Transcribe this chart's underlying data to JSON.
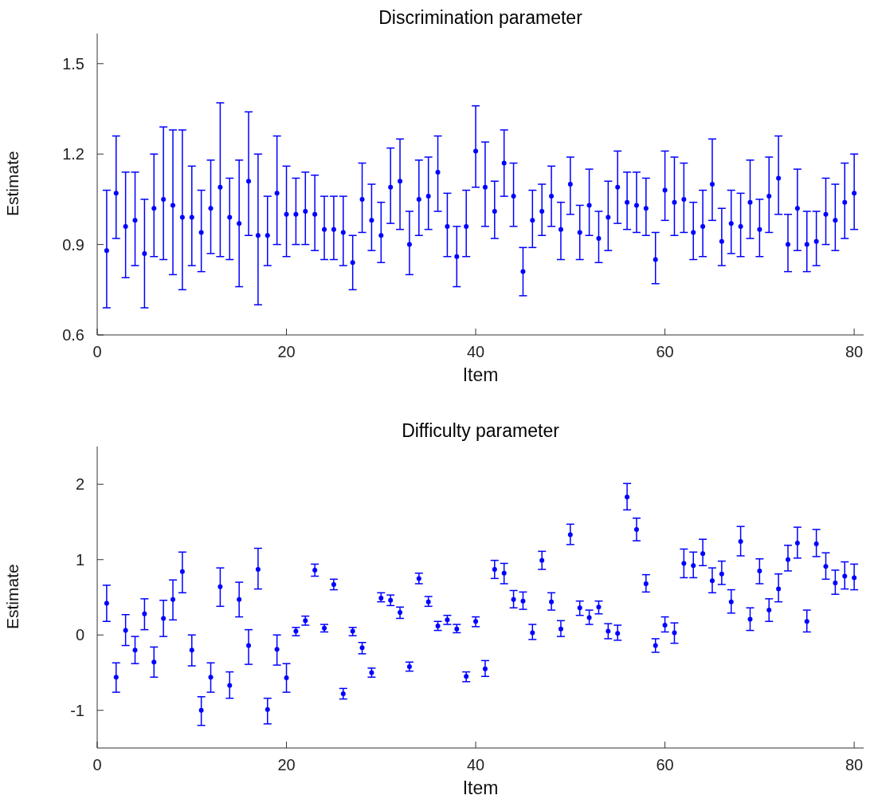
{
  "chart_data": [
    {
      "type": "scatter",
      "title": "Discrimination parameter",
      "xlabel": "Item",
      "ylabel": "Estimate",
      "xlim": [
        0,
        81
      ],
      "xticks": [
        0,
        20,
        40,
        60,
        80
      ],
      "ylim": [
        0.6,
        1.6
      ],
      "yticks": [
        0.6,
        0.9,
        1.2,
        1.5
      ],
      "grid": false,
      "legend": false,
      "marker": "circle",
      "x": [
        1,
        2,
        3,
        4,
        5,
        6,
        7,
        8,
        9,
        10,
        11,
        12,
        13,
        14,
        15,
        16,
        17,
        18,
        19,
        20,
        21,
        22,
        23,
        24,
        25,
        26,
        27,
        28,
        29,
        30,
        31,
        32,
        33,
        34,
        35,
        36,
        37,
        38,
        39,
        40,
        41,
        42,
        43,
        44,
        45,
        46,
        47,
        48,
        49,
        50,
        51,
        52,
        53,
        54,
        55,
        56,
        57,
        58,
        59,
        60,
        61,
        62,
        63,
        64,
        65,
        66,
        67,
        68,
        69,
        70,
        71,
        72,
        73,
        74,
        75,
        76,
        77,
        78,
        79,
        80
      ],
      "series": [
        {
          "color": "#0000ff",
          "values": [
            0.88,
            1.07,
            0.96,
            0.98,
            0.87,
            1.02,
            1.05,
            1.03,
            0.99,
            0.99,
            0.94,
            1.02,
            1.09,
            0.99,
            0.97,
            1.11,
            0.93,
            0.93,
            1.07,
            1.0,
            1.0,
            1.01,
            1.0,
            0.95,
            0.95,
            0.94,
            0.84,
            1.05,
            0.98,
            0.93,
            1.09,
            1.11,
            0.9,
            1.05,
            1.06,
            1.14,
            0.96,
            0.86,
            0.96,
            1.21,
            1.09,
            1.01,
            1.17,
            1.06,
            0.81,
            0.98,
            1.01,
            1.06,
            0.95,
            1.1,
            0.94,
            1.03,
            0.92,
            0.99,
            1.09,
            1.04,
            1.03,
            1.02,
            0.85,
            1.08,
            1.04,
            1.05,
            0.94,
            0.96,
            1.1,
            0.91,
            0.97,
            0.96,
            1.04,
            0.95,
            1.06,
            1.12,
            0.9,
            1.02,
            0.9,
            0.91,
            1.0,
            0.98,
            1.04,
            1.07
          ],
          "errors": [
            [
              0.69,
              1.08
            ],
            [
              0.92,
              1.26
            ],
            [
              0.79,
              1.14
            ],
            [
              0.83,
              1.14
            ],
            [
              0.69,
              1.05
            ],
            [
              0.86,
              1.2
            ],
            [
              0.85,
              1.29
            ],
            [
              0.8,
              1.28
            ],
            [
              0.75,
              1.28
            ],
            [
              0.83,
              1.16
            ],
            [
              0.81,
              1.08
            ],
            [
              0.87,
              1.18
            ],
            [
              0.86,
              1.37
            ],
            [
              0.85,
              1.12
            ],
            [
              0.76,
              1.18
            ],
            [
              0.93,
              1.34
            ],
            [
              0.7,
              1.2
            ],
            [
              0.83,
              1.06
            ],
            [
              0.9,
              1.26
            ],
            [
              0.86,
              1.16
            ],
            [
              0.9,
              1.12
            ],
            [
              0.9,
              1.14
            ],
            [
              0.88,
              1.13
            ],
            [
              0.85,
              1.06
            ],
            [
              0.85,
              1.06
            ],
            [
              0.83,
              1.06
            ],
            [
              0.75,
              0.93
            ],
            [
              0.94,
              1.17
            ],
            [
              0.88,
              1.1
            ],
            [
              0.84,
              1.04
            ],
            [
              0.97,
              1.22
            ],
            [
              0.95,
              1.25
            ],
            [
              0.8,
              1.01
            ],
            [
              0.93,
              1.18
            ],
            [
              0.95,
              1.19
            ],
            [
              1.01,
              1.26
            ],
            [
              0.86,
              1.07
            ],
            [
              0.76,
              0.96
            ],
            [
              0.86,
              1.08
            ],
            [
              1.09,
              1.36
            ],
            [
              0.96,
              1.24
            ],
            [
              0.92,
              1.11
            ],
            [
              1.06,
              1.28
            ],
            [
              0.96,
              1.17
            ],
            [
              0.73,
              0.89
            ],
            [
              0.89,
              1.08
            ],
            [
              0.93,
              1.1
            ],
            [
              0.96,
              1.16
            ],
            [
              0.85,
              1.04
            ],
            [
              1.0,
              1.19
            ],
            [
              0.85,
              1.03
            ],
            [
              0.93,
              1.15
            ],
            [
              0.84,
              1.01
            ],
            [
              0.88,
              1.11
            ],
            [
              0.97,
              1.21
            ],
            [
              0.95,
              1.14
            ],
            [
              0.94,
              1.14
            ],
            [
              0.93,
              1.12
            ],
            [
              0.77,
              0.94
            ],
            [
              0.98,
              1.21
            ],
            [
              0.93,
              1.19
            ],
            [
              0.94,
              1.17
            ],
            [
              0.85,
              1.04
            ],
            [
              0.86,
              1.08
            ],
            [
              0.98,
              1.25
            ],
            [
              0.83,
              1.02
            ],
            [
              0.87,
              1.08
            ],
            [
              0.86,
              1.07
            ],
            [
              0.92,
              1.18
            ],
            [
              0.86,
              1.05
            ],
            [
              0.94,
              1.19
            ],
            [
              1.0,
              1.26
            ],
            [
              0.81,
              1.0
            ],
            [
              0.88,
              1.15
            ],
            [
              0.81,
              1.01
            ],
            [
              0.83,
              1.01
            ],
            [
              0.9,
              1.12
            ],
            [
              0.88,
              1.1
            ],
            [
              0.92,
              1.17
            ],
            [
              0.95,
              1.2
            ]
          ]
        }
      ]
    },
    {
      "type": "scatter",
      "title": "Difficulty parameter",
      "xlabel": "Item",
      "ylabel": "Estimate",
      "xlim": [
        0,
        81
      ],
      "xticks": [
        0,
        20,
        40,
        60,
        80
      ],
      "ylim": [
        -1.5,
        2.5
      ],
      "yticks": [
        -1,
        0,
        1,
        2
      ],
      "grid": false,
      "legend": false,
      "marker": "circle",
      "x": [
        1,
        2,
        3,
        4,
        5,
        6,
        7,
        8,
        9,
        10,
        11,
        12,
        13,
        14,
        15,
        16,
        17,
        18,
        19,
        20,
        21,
        22,
        23,
        24,
        25,
        26,
        27,
        28,
        29,
        30,
        31,
        32,
        33,
        34,
        35,
        36,
        37,
        38,
        39,
        40,
        41,
        42,
        43,
        44,
        45,
        46,
        47,
        48,
        49,
        50,
        51,
        52,
        53,
        54,
        55,
        56,
        57,
        58,
        59,
        60,
        61,
        62,
        63,
        64,
        65,
        66,
        67,
        68,
        69,
        70,
        71,
        72,
        73,
        74,
        75,
        76,
        77,
        78,
        79,
        80
      ],
      "series": [
        {
          "color": "#0000ff",
          "values": [
            0.42,
            -0.56,
            0.06,
            -0.2,
            0.28,
            -0.36,
            0.22,
            0.47,
            0.84,
            -0.2,
            -1.0,
            -0.56,
            0.64,
            -0.67,
            0.47,
            -0.14,
            0.87,
            -0.99,
            -0.19,
            -0.57,
            0.05,
            0.19,
            0.86,
            0.09,
            0.67,
            -0.78,
            0.05,
            -0.17,
            -0.5,
            0.49,
            0.46,
            0.3,
            -0.42,
            0.75,
            0.44,
            0.12,
            0.2,
            0.08,
            -0.55,
            0.18,
            -0.45,
            0.87,
            0.82,
            0.47,
            0.45,
            0.03,
            0.99,
            0.44,
            0.08,
            1.33,
            0.36,
            0.23,
            0.37,
            0.05,
            0.02,
            1.83,
            1.4,
            0.68,
            -0.14,
            0.13,
            0.03,
            0.95,
            0.92,
            1.08,
            0.72,
            0.81,
            0.44,
            1.24,
            0.21,
            0.85,
            0.33,
            0.61,
            1.0,
            1.22,
            0.18,
            1.21,
            0.91,
            0.69,
            0.78,
            0.76
          ],
          "errors": [
            [
              0.18,
              0.66
            ],
            [
              -0.76,
              -0.37
            ],
            [
              -0.14,
              0.27
            ],
            [
              -0.38,
              -0.02
            ],
            [
              0.07,
              0.48
            ],
            [
              -0.56,
              -0.16
            ],
            [
              -0.02,
              0.46
            ],
            [
              0.2,
              0.73
            ],
            [
              0.56,
              1.1
            ],
            [
              -0.41,
              0.0
            ],
            [
              -1.2,
              -0.82
            ],
            [
              -0.76,
              -0.37
            ],
            [
              0.38,
              0.89
            ],
            [
              -0.84,
              -0.49
            ],
            [
              0.24,
              0.7
            ],
            [
              -0.39,
              0.07
            ],
            [
              0.61,
              1.15
            ],
            [
              -1.18,
              -0.84
            ],
            [
              -0.4,
              0.0
            ],
            [
              -0.76,
              -0.38
            ],
            [
              -0.01,
              0.1
            ],
            [
              0.13,
              0.25
            ],
            [
              0.78,
              0.94
            ],
            [
              0.04,
              0.14
            ],
            [
              0.6,
              0.74
            ],
            [
              -0.85,
              -0.71
            ],
            [
              -0.01,
              0.1
            ],
            [
              -0.25,
              -0.1
            ],
            [
              -0.56,
              -0.44
            ],
            [
              0.44,
              0.56
            ],
            [
              0.39,
              0.53
            ],
            [
              0.22,
              0.37
            ],
            [
              -0.48,
              -0.36
            ],
            [
              0.68,
              0.82
            ],
            [
              0.38,
              0.51
            ],
            [
              0.06,
              0.18
            ],
            [
              0.14,
              0.26
            ],
            [
              0.03,
              0.14
            ],
            [
              -0.62,
              -0.49
            ],
            [
              0.11,
              0.24
            ],
            [
              -0.55,
              -0.34
            ],
            [
              0.75,
              0.99
            ],
            [
              0.68,
              0.95
            ],
            [
              0.36,
              0.59
            ],
            [
              0.34,
              0.57
            ],
            [
              -0.06,
              0.14
            ],
            [
              0.87,
              1.11
            ],
            [
              0.33,
              0.56
            ],
            [
              -0.02,
              0.19
            ],
            [
              1.2,
              1.47
            ],
            [
              0.26,
              0.45
            ],
            [
              0.14,
              0.33
            ],
            [
              0.28,
              0.45
            ],
            [
              -0.05,
              0.15
            ],
            [
              -0.07,
              0.13
            ],
            [
              1.66,
              2.01
            ],
            [
              1.25,
              1.55
            ],
            [
              0.57,
              0.8
            ],
            [
              -0.23,
              -0.05
            ],
            [
              0.04,
              0.24
            ],
            [
              -0.11,
              0.16
            ],
            [
              0.76,
              1.14
            ],
            [
              0.76,
              1.1
            ],
            [
              0.92,
              1.27
            ],
            [
              0.56,
              0.89
            ],
            [
              0.67,
              0.98
            ],
            [
              0.29,
              0.6
            ],
            [
              1.05,
              1.44
            ],
            [
              0.06,
              0.36
            ],
            [
              0.68,
              1.01
            ],
            [
              0.18,
              0.48
            ],
            [
              0.44,
              0.81
            ],
            [
              0.85,
              1.19
            ],
            [
              1.02,
              1.43
            ],
            [
              0.04,
              0.33
            ],
            [
              1.04,
              1.4
            ],
            [
              0.74,
              1.09
            ],
            [
              0.54,
              0.86
            ],
            [
              0.61,
              0.97
            ],
            [
              0.6,
              0.94
            ]
          ]
        }
      ]
    }
  ]
}
